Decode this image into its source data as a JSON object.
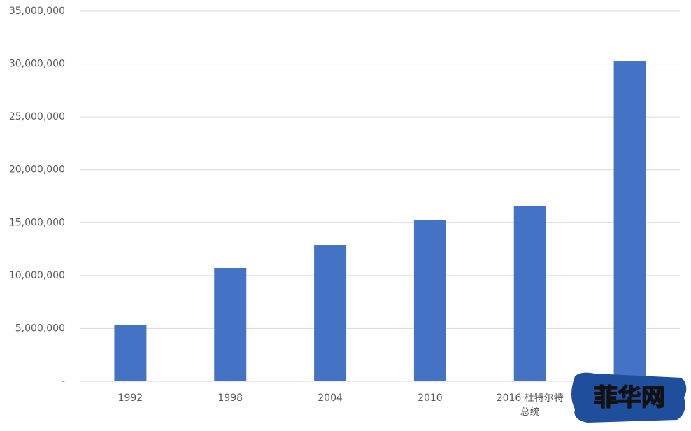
{
  "chart_data": {
    "type": "bar",
    "categories": [
      "1992",
      "1998",
      "2004",
      "2010",
      "2016 杜特尔特总统",
      null
    ],
    "values": [
      5350000,
      10720000,
      12900000,
      15220000,
      16600000,
      30300000
    ],
    "color": "#4472c4",
    "ylim": [
      0,
      35000000
    ],
    "yticks": [
      {
        "value": 0,
        "label": "-"
      },
      {
        "value": 5000000,
        "label": "5,000,000"
      },
      {
        "value": 10000000,
        "label": "10,000,000"
      },
      {
        "value": 15000000,
        "label": "15,000,000"
      },
      {
        "value": 20000000,
        "label": "20,000,000"
      },
      {
        "value": 25000000,
        "label": "25,000,000"
      },
      {
        "value": 30000000,
        "label": "30,000,000"
      },
      {
        "value": 35000000,
        "label": "35,000,000"
      }
    ],
    "grid": true
  },
  "watermark": "菲华网"
}
